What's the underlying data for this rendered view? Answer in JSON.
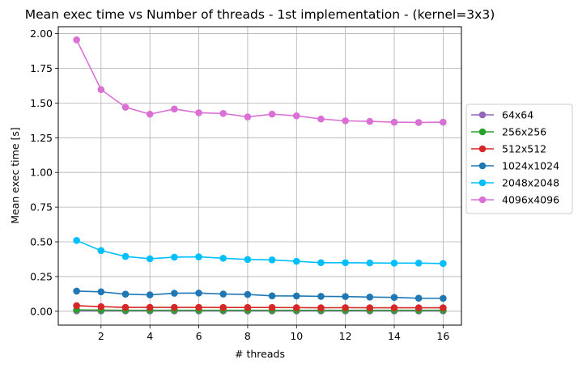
{
  "chart_data": {
    "type": "line",
    "title": "Mean exec time vs Number of threads - 1st implementation - (kernel=3x3)",
    "xlabel": "# threads",
    "ylabel": "Mean exec time [s]",
    "xlim": [
      0.25,
      16.75
    ],
    "ylim": [
      -0.1,
      2.05
    ],
    "xticks": [
      2,
      4,
      6,
      8,
      10,
      12,
      14,
      16
    ],
    "yticks": [
      "0.00",
      "0.25",
      "0.50",
      "0.75",
      "1.00",
      "1.25",
      "1.50",
      "1.75",
      "2.00"
    ],
    "grid": true,
    "legend_position": "center-right, outside",
    "x": [
      1,
      2,
      3,
      4,
      5,
      6,
      7,
      8,
      9,
      10,
      11,
      12,
      13,
      14,
      15,
      16
    ],
    "series": [
      {
        "name": "64x64",
        "color": "#9467bd",
        "values": [
          0.002,
          0.002,
          0.002,
          0.002,
          0.002,
          0.002,
          0.002,
          0.002,
          0.002,
          0.002,
          0.002,
          0.002,
          0.002,
          0.002,
          0.002,
          0.002
        ]
      },
      {
        "name": "256x256",
        "color": "#2ca02c",
        "values": [
          0.01,
          0.008,
          0.007,
          0.007,
          0.007,
          0.007,
          0.007,
          0.007,
          0.007,
          0.007,
          0.007,
          0.007,
          0.007,
          0.007,
          0.007,
          0.007
        ]
      },
      {
        "name": "512x512",
        "color": "#d62728",
        "values": [
          0.04,
          0.033,
          0.028,
          0.028,
          0.028,
          0.028,
          0.027,
          0.027,
          0.027,
          0.026,
          0.025,
          0.026,
          0.025,
          0.025,
          0.025,
          0.025
        ]
      },
      {
        "name": "1024x1024",
        "color": "#1f77b4",
        "values": [
          0.145,
          0.14,
          0.123,
          0.118,
          0.13,
          0.131,
          0.124,
          0.121,
          0.111,
          0.11,
          0.107,
          0.106,
          0.102,
          0.1,
          0.094,
          0.093
        ]
      },
      {
        "name": "2048x2048",
        "color": "#00bfff",
        "values": [
          0.51,
          0.437,
          0.395,
          0.378,
          0.39,
          0.392,
          0.382,
          0.373,
          0.37,
          0.36,
          0.35,
          0.35,
          0.348,
          0.347,
          0.347,
          0.344
        ]
      },
      {
        "name": "4096x4096",
        "color": "#da70d6",
        "values": [
          1.955,
          1.597,
          1.47,
          1.42,
          1.457,
          1.43,
          1.425,
          1.4,
          1.42,
          1.408,
          1.385,
          1.372,
          1.368,
          1.362,
          1.36,
          1.362
        ]
      }
    ]
  }
}
